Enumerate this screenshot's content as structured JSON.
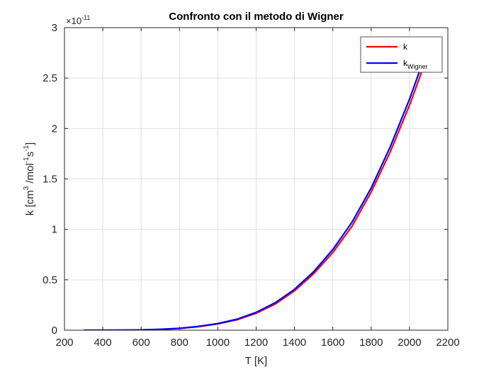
{
  "chart_data": {
    "type": "line",
    "title": "Confronto con il metodo di Wigner",
    "xlabel": "T [K]",
    "ylabel": {
      "parts": [
        {
          "t": "k [cm",
          "s": 0
        },
        {
          "t": "3",
          "s": 1
        },
        {
          "t": " /mol",
          "s": 0
        },
        {
          "t": "-1",
          "s": 1
        },
        {
          "t": "s",
          "s": 0
        },
        {
          "t": "-1",
          "s": 1
        },
        {
          "t": "]",
          "s": 0
        }
      ]
    },
    "xlim": [
      200,
      2200
    ],
    "ylim": [
      0,
      3
    ],
    "y_exponent": "-11",
    "y_multiplier": "×10",
    "xticks": [
      200,
      400,
      600,
      800,
      1000,
      1200,
      1400,
      1600,
      1800,
      2000,
      2200
    ],
    "xtick_labels": [
      "200",
      "400",
      "600",
      "800",
      "1000",
      "1200",
      "1400",
      "1600",
      "1800",
      "2000",
      "2200"
    ],
    "yticks": [
      0,
      0.5,
      1,
      1.5,
      2,
      2.5,
      3
    ],
    "ytick_labels": [
      "0",
      "0.5",
      "1",
      "1.5",
      "2",
      "2.5",
      "3"
    ],
    "grid": true,
    "legend_position": "top-right",
    "x": [
      300,
      400,
      500,
      600,
      700,
      800,
      900,
      1000,
      1100,
      1200,
      1300,
      1400,
      1500,
      1600,
      1700,
      1800,
      1900,
      2000,
      2100
    ],
    "series": [
      {
        "name": "k",
        "legend_main": "k",
        "legend_sub": "",
        "color": "#ff0000",
        "values": [
          0.0,
          0.0,
          0.001,
          0.003,
          0.008,
          0.017,
          0.035,
          0.062,
          0.103,
          0.168,
          0.26,
          0.39,
          0.56,
          0.77,
          1.03,
          1.37,
          1.77,
          2.23,
          2.75
        ]
      },
      {
        "name": "kWigner",
        "legend_main": "k",
        "legend_sub": "Wigner",
        "color": "#0000ff",
        "values": [
          0.0,
          0.0,
          0.001,
          0.003,
          0.009,
          0.019,
          0.038,
          0.066,
          0.109,
          0.177,
          0.273,
          0.405,
          0.58,
          0.8,
          1.07,
          1.41,
          1.82,
          2.29,
          2.82
        ]
      }
    ]
  }
}
